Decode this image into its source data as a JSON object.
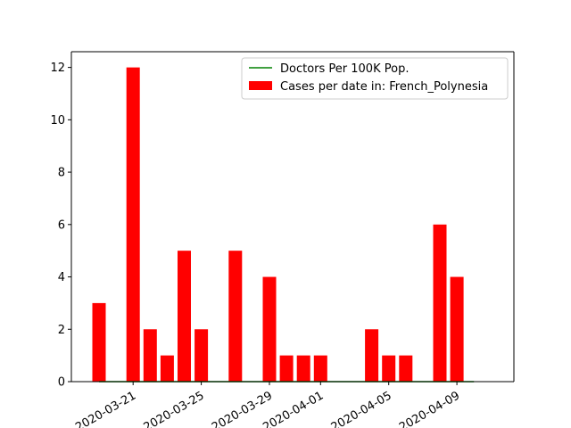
{
  "chart_data": {
    "type": "bar",
    "title": "",
    "xlabel": "",
    "ylabel": "",
    "ylim": [
      0,
      12.6
    ],
    "yticks": [
      0,
      2,
      4,
      6,
      8,
      10,
      12
    ],
    "grid": false,
    "legend_position": "top-right",
    "x_tick_labels": [
      "2020-03-21",
      "2020-03-25",
      "2020-03-29",
      "2020-04-01",
      "2020-04-05",
      "2020-04-09"
    ],
    "x_tick_rotation_deg": 30,
    "series": [
      {
        "name": "Cases per date in: French_Polynesia",
        "kind": "bar",
        "color": "#ff0000",
        "points": [
          {
            "x": "2020-03-19",
            "y": 3
          },
          {
            "x": "2020-03-21",
            "y": 12
          },
          {
            "x": "2020-03-22",
            "y": 2
          },
          {
            "x": "2020-03-23",
            "y": 1
          },
          {
            "x": "2020-03-24",
            "y": 5
          },
          {
            "x": "2020-03-25",
            "y": 2
          },
          {
            "x": "2020-03-27",
            "y": 5
          },
          {
            "x": "2020-03-29",
            "y": 4
          },
          {
            "x": "2020-03-30",
            "y": 1
          },
          {
            "x": "2020-03-31",
            "y": 1
          },
          {
            "x": "2020-04-01",
            "y": 1
          },
          {
            "x": "2020-04-04",
            "y": 2
          },
          {
            "x": "2020-04-05",
            "y": 1
          },
          {
            "x": "2020-04-06",
            "y": 1
          },
          {
            "x": "2020-04-08",
            "y": 6
          },
          {
            "x": "2020-04-09",
            "y": 4
          }
        ]
      },
      {
        "name": "Doctors Per 100K Pop.",
        "kind": "line",
        "color": "#008000",
        "points": [
          {
            "x": "2020-03-19",
            "y": 0
          },
          {
            "x": "2020-04-10",
            "y": 0
          }
        ]
      }
    ]
  }
}
